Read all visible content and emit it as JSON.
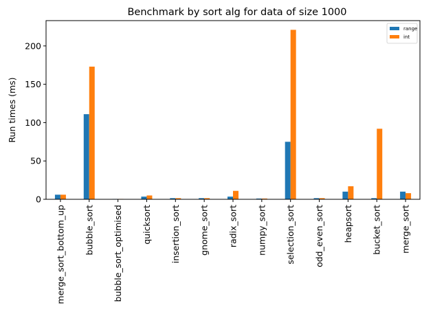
{
  "chart_data": {
    "type": "bar",
    "title": "Benchmark by sort alg for data of size 1000",
    "xlabel": "",
    "ylabel": "Run times (ms)",
    "ylim": [
      0,
      233
    ],
    "yticks": [
      0,
      50,
      100,
      150,
      200
    ],
    "grid": false,
    "legend_position": "top-right",
    "categories": [
      "merge_sort_bottom_up",
      "bubble_sort",
      "bubble_sort_optimised",
      "quicksort",
      "insertion_sort",
      "gnome_sort",
      "radix_sort",
      "numpy_sort",
      "selection_sort",
      "odd_even_sort",
      "heapsort",
      "bucket_sort",
      "merge_sort"
    ],
    "series": [
      {
        "name": "range",
        "color": "#1f77b4",
        "values": [
          6,
          111,
          0.5,
          3.5,
          1.5,
          1.5,
          3.5,
          1,
          75,
          1.5,
          10,
          1.5,
          10
        ]
      },
      {
        "name": "int",
        "color": "#ff7f0e",
        "values": [
          6,
          173,
          0.5,
          5,
          1.5,
          1.5,
          11,
          1,
          221,
          1.5,
          17,
          92,
          8
        ]
      }
    ]
  }
}
